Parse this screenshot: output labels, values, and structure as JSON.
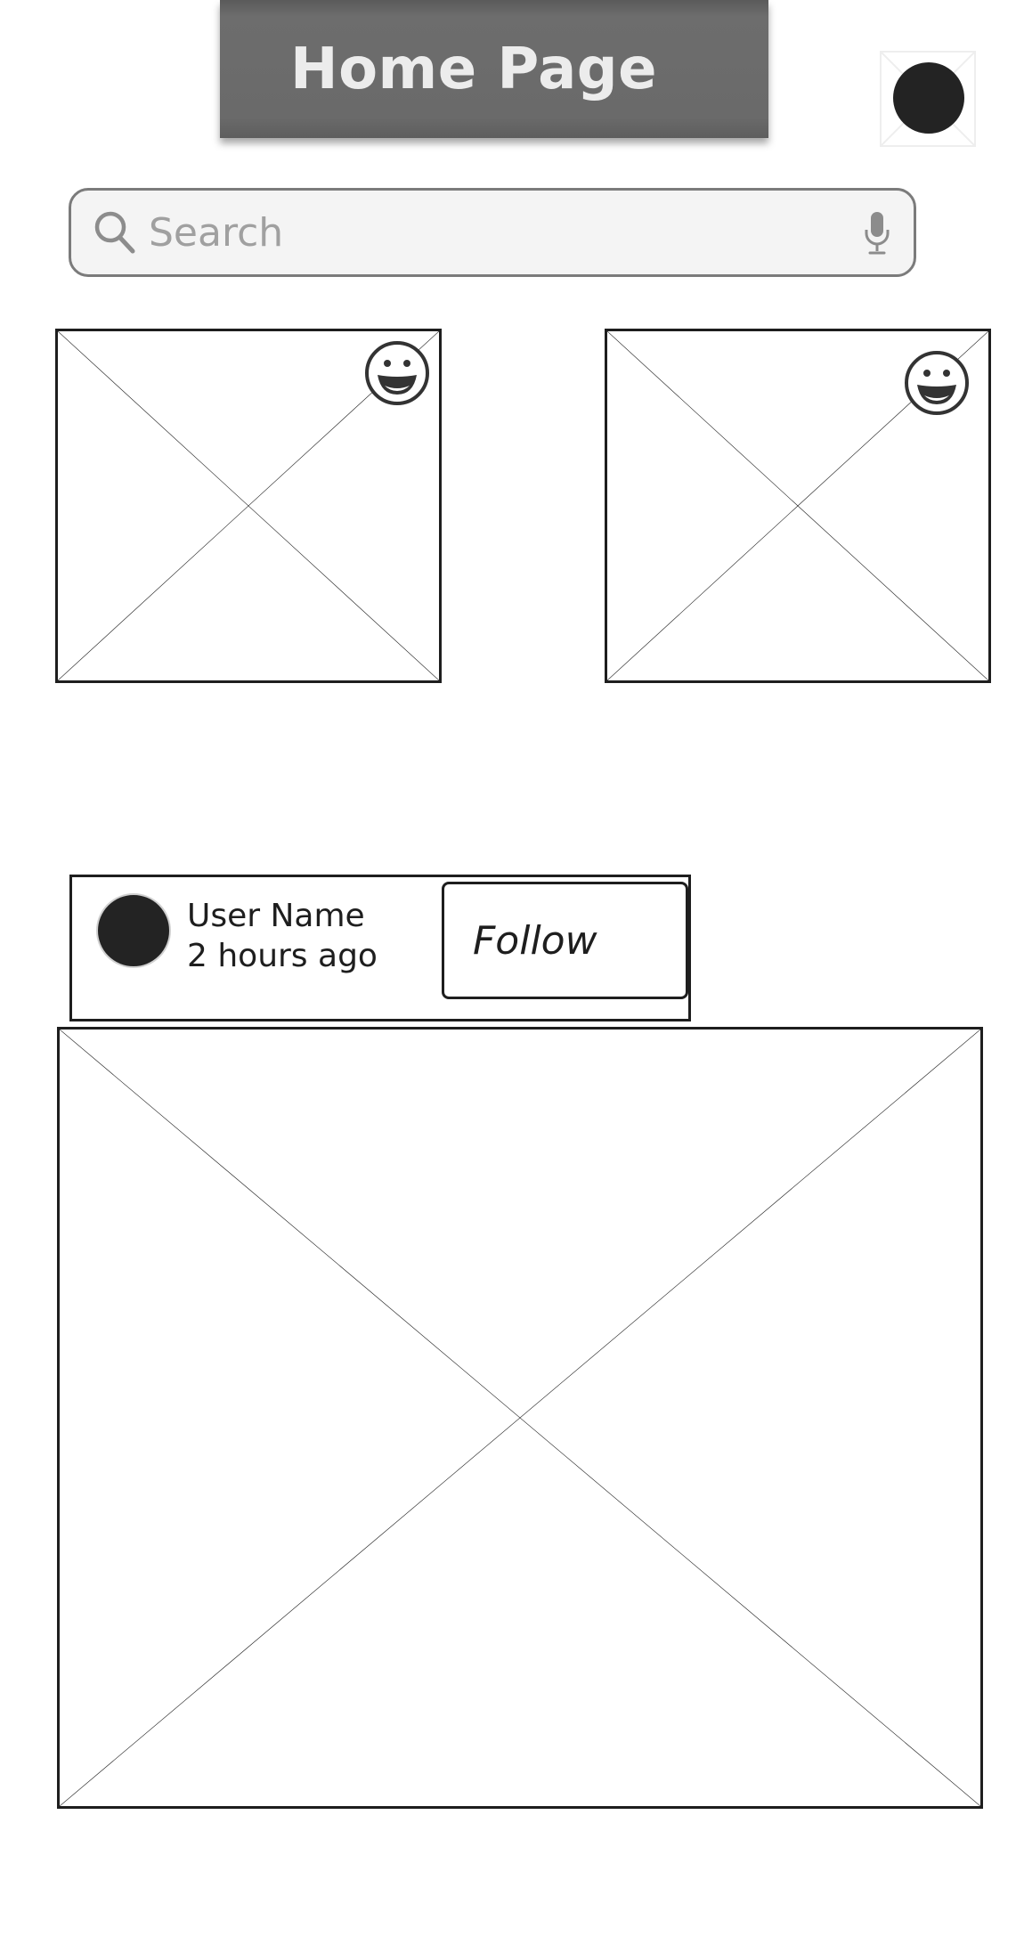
{
  "header": {
    "title": "Home Page"
  },
  "search": {
    "placeholder": "Search"
  },
  "post": {
    "user_name": "User Name",
    "time_ago": "2 hours ago",
    "follow_label": "Follow"
  },
  "icons": {
    "search": "search-icon",
    "mic": "microphone-icon",
    "emoji": "smiley-icon",
    "avatar": "avatar"
  },
  "colors": {
    "header_bg": "#6a6a6a",
    "header_text": "#ececec",
    "search_bg": "#f4f4f4",
    "stroke": "#1e1e1e",
    "avatar": "#232323"
  }
}
